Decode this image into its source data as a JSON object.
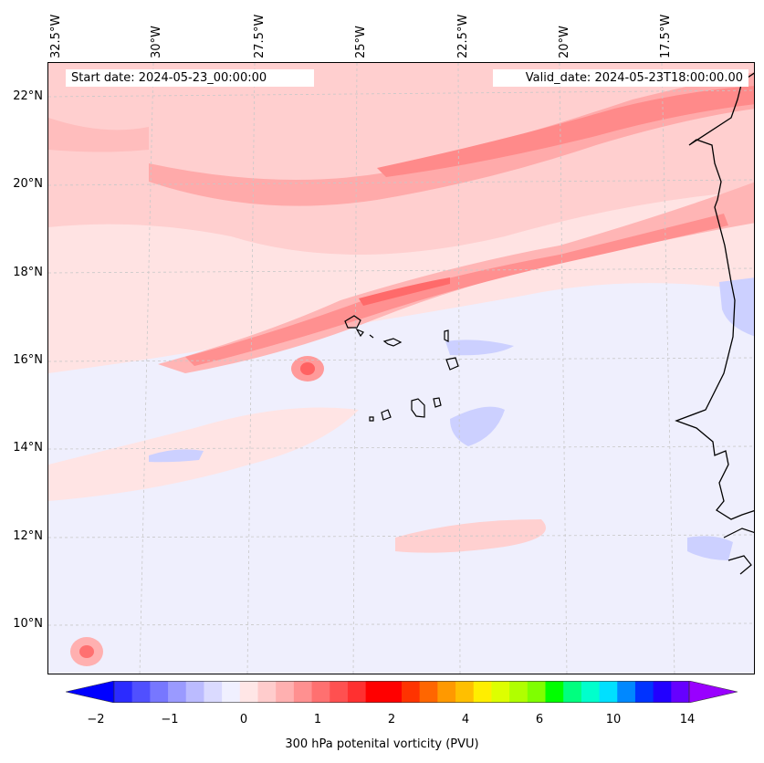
{
  "header": {
    "start_date": "Start date: 2024-05-23_00:00:00",
    "valid_date": "Valid_date: 2024-05-23T18:00:00.00"
  },
  "map": {
    "lon_labels": [
      "32.5°W",
      "30°W",
      "27.5°W",
      "25°W",
      "22.5°W",
      "20°W",
      "17.5°W"
    ],
    "lat_labels": [
      "22°N",
      "20°N",
      "18°N",
      "16°N",
      "14°N",
      "12°N",
      "10°N"
    ],
    "features": [
      "Cabo Verde islands",
      "West African coastline"
    ]
  },
  "colorbar": {
    "title": "300 hPa potenital vorticity (PVU)",
    "tick_labels": [
      "−2",
      "−1",
      "0",
      "1",
      "2",
      "4",
      "6",
      "10",
      "14"
    ],
    "colors": [
      "#0000ff",
      "#2b2bff",
      "#5050ff",
      "#7777ff",
      "#9a9aff",
      "#bbbbff",
      "#dadaff",
      "#f0f0ff",
      "#ffe6e6",
      "#ffcccc",
      "#ffb0b0",
      "#ff9090",
      "#ff7070",
      "#ff5050",
      "#ff3030",
      "#ff0000",
      "#ff0000",
      "#ff3300",
      "#ff6600",
      "#ff9900",
      "#ffbf00",
      "#ffee00",
      "#ddff00",
      "#b0ff00",
      "#7fff00",
      "#00ff00",
      "#00ff7f",
      "#00ffcc",
      "#00e0ff",
      "#0088ff",
      "#0033ff",
      "#2200ff",
      "#6600ff",
      "#9900ff"
    ]
  }
}
